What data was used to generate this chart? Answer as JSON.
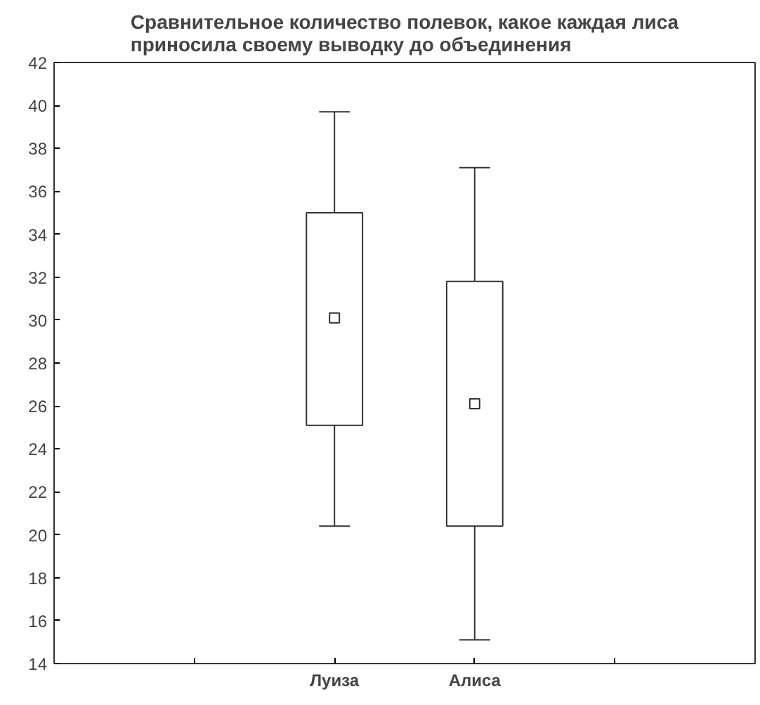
{
  "chart_data": {
    "type": "box",
    "title": "Сравнительное количество полевок, какое каждая лиса\nприносила своему выводку до объединения",
    "categories": [
      null,
      "Луиза",
      "Алиса",
      null
    ],
    "ylim": [
      14,
      42
    ],
    "yticks": [
      14,
      16,
      18,
      20,
      22,
      24,
      26,
      28,
      30,
      32,
      34,
      36,
      38,
      40,
      42
    ],
    "boxes": [
      null,
      {
        "low": 20.4,
        "q1": 25.1,
        "median": 30.1,
        "q3": 35.0,
        "high": 39.7
      },
      {
        "low": 15.1,
        "q1": 20.4,
        "median": 26.1,
        "q3": 31.8,
        "high": 37.1
      },
      null
    ],
    "marker": "square",
    "grid": false
  }
}
